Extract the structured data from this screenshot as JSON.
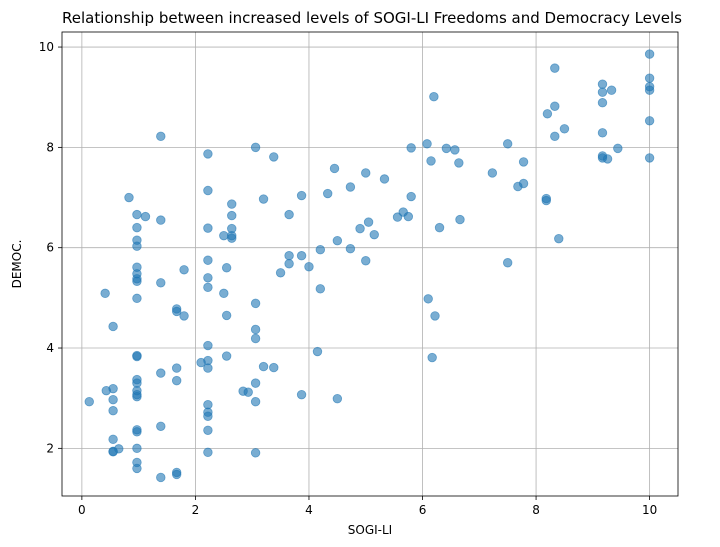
{
  "chart_data": {
    "type": "scatter",
    "title": "Relationship between increased levels of SOGI-LI Freedoms and Democracy Levels",
    "xlabel": "SOGI-LI",
    "ylabel": "DEMOC.",
    "xlim": [
      -0.35,
      10.5
    ],
    "ylim": [
      1.05,
      10.3
    ],
    "xticks": [
      0,
      2,
      4,
      6,
      8,
      10
    ],
    "yticks": [
      2,
      4,
      6,
      8,
      10
    ],
    "grid": true,
    "marker_color": "#1f77b4",
    "points": [
      [
        0.13,
        2.93
      ],
      [
        0.41,
        5.09
      ],
      [
        0.43,
        3.15
      ],
      [
        0.55,
        3.19
      ],
      [
        0.55,
        2.97
      ],
      [
        0.55,
        2.75
      ],
      [
        0.55,
        4.43
      ],
      [
        0.55,
        2.18
      ],
      [
        0.55,
        1.93
      ],
      [
        0.55,
        1.94
      ],
      [
        0.65,
        1.99
      ],
      [
        0.83,
        7.0
      ],
      [
        0.97,
        6.66
      ],
      [
        0.97,
        6.4
      ],
      [
        0.97,
        6.15
      ],
      [
        0.97,
        6.03
      ],
      [
        0.97,
        5.61
      ],
      [
        0.97,
        5.48
      ],
      [
        0.97,
        5.38
      ],
      [
        0.97,
        5.33
      ],
      [
        0.97,
        4.99
      ],
      [
        0.97,
        3.85
      ],
      [
        0.97,
        3.83
      ],
      [
        0.97,
        3.37
      ],
      [
        0.97,
        3.3
      ],
      [
        0.97,
        3.15
      ],
      [
        0.97,
        3.07
      ],
      [
        0.97,
        3.03
      ],
      [
        0.97,
        2.37
      ],
      [
        0.97,
        2.33
      ],
      [
        0.97,
        2.0
      ],
      [
        0.97,
        1.72
      ],
      [
        0.97,
        1.6
      ],
      [
        1.12,
        6.62
      ],
      [
        1.39,
        8.22
      ],
      [
        1.39,
        6.55
      ],
      [
        1.39,
        5.3
      ],
      [
        1.39,
        3.5
      ],
      [
        1.39,
        2.44
      ],
      [
        1.39,
        1.42
      ],
      [
        1.67,
        4.78
      ],
      [
        1.67,
        4.73
      ],
      [
        1.67,
        3.6
      ],
      [
        1.67,
        3.35
      ],
      [
        1.67,
        1.52
      ],
      [
        1.67,
        1.48
      ],
      [
        1.8,
        5.56
      ],
      [
        1.8,
        4.64
      ],
      [
        2.1,
        3.71
      ],
      [
        2.22,
        7.87
      ],
      [
        2.22,
        7.14
      ],
      [
        2.22,
        6.39
      ],
      [
        2.22,
        5.75
      ],
      [
        2.22,
        5.4
      ],
      [
        2.22,
        5.21
      ],
      [
        2.22,
        4.05
      ],
      [
        2.22,
        3.75
      ],
      [
        2.22,
        3.6
      ],
      [
        2.22,
        2.87
      ],
      [
        2.22,
        2.72
      ],
      [
        2.22,
        2.64
      ],
      [
        2.22,
        2.36
      ],
      [
        2.22,
        1.92
      ],
      [
        2.5,
        6.24
      ],
      [
        2.5,
        5.09
      ],
      [
        2.55,
        5.6
      ],
      [
        2.55,
        4.65
      ],
      [
        2.55,
        3.84
      ],
      [
        2.64,
        6.87
      ],
      [
        2.64,
        6.64
      ],
      [
        2.64,
        6.38
      ],
      [
        2.64,
        6.24
      ],
      [
        2.64,
        6.19
      ],
      [
        2.84,
        3.14
      ],
      [
        2.93,
        3.12
      ],
      [
        3.06,
        8.0
      ],
      [
        3.06,
        4.89
      ],
      [
        3.06,
        4.37
      ],
      [
        3.06,
        4.19
      ],
      [
        3.06,
        3.3
      ],
      [
        3.06,
        2.93
      ],
      [
        3.06,
        1.91
      ],
      [
        3.2,
        6.97
      ],
      [
        3.2,
        3.63
      ],
      [
        3.38,
        7.81
      ],
      [
        3.38,
        3.61
      ],
      [
        3.5,
        5.5
      ],
      [
        3.65,
        6.66
      ],
      [
        3.65,
        5.84
      ],
      [
        3.65,
        5.68
      ],
      [
        3.87,
        7.04
      ],
      [
        3.87,
        5.84
      ],
      [
        3.87,
        3.07
      ],
      [
        4.0,
        5.62
      ],
      [
        4.15,
        3.93
      ],
      [
        4.2,
        5.96
      ],
      [
        4.2,
        5.18
      ],
      [
        4.33,
        7.08
      ],
      [
        4.45,
        7.58
      ],
      [
        4.5,
        6.14
      ],
      [
        4.5,
        2.99
      ],
      [
        4.73,
        7.21
      ],
      [
        4.73,
        5.98
      ],
      [
        4.9,
        6.38
      ],
      [
        5.0,
        7.49
      ],
      [
        5.0,
        5.74
      ],
      [
        5.05,
        6.51
      ],
      [
        5.15,
        6.26
      ],
      [
        5.33,
        7.37
      ],
      [
        5.56,
        6.61
      ],
      [
        5.66,
        6.71
      ],
      [
        5.75,
        6.62
      ],
      [
        5.8,
        7.99
      ],
      [
        5.8,
        7.02
      ],
      [
        6.08,
        8.07
      ],
      [
        6.1,
        4.98
      ],
      [
        6.15,
        7.73
      ],
      [
        6.17,
        3.81
      ],
      [
        6.2,
        9.01
      ],
      [
        6.22,
        4.64
      ],
      [
        6.3,
        6.4
      ],
      [
        6.42,
        7.98
      ],
      [
        6.57,
        7.95
      ],
      [
        6.64,
        7.69
      ],
      [
        6.66,
        6.56
      ],
      [
        7.23,
        7.49
      ],
      [
        7.5,
        8.07
      ],
      [
        7.5,
        5.7
      ],
      [
        7.68,
        7.22
      ],
      [
        7.78,
        7.71
      ],
      [
        7.78,
        7.28
      ],
      [
        8.2,
        8.67
      ],
      [
        8.18,
        6.98
      ],
      [
        8.18,
        6.94
      ],
      [
        8.33,
        9.58
      ],
      [
        8.33,
        8.82
      ],
      [
        8.33,
        8.22
      ],
      [
        8.4,
        6.18
      ],
      [
        8.5,
        8.37
      ],
      [
        9.17,
        9.26
      ],
      [
        9.17,
        9.1
      ],
      [
        9.17,
        8.89
      ],
      [
        9.17,
        8.29
      ],
      [
        9.17,
        7.83
      ],
      [
        9.17,
        7.79
      ],
      [
        9.26,
        7.77
      ],
      [
        9.33,
        9.14
      ],
      [
        9.44,
        7.98
      ],
      [
        10.0,
        9.86
      ],
      [
        10.0,
        9.38
      ],
      [
        10.0,
        9.21
      ],
      [
        10.0,
        9.14
      ],
      [
        10.0,
        8.53
      ],
      [
        10.0,
        7.79
      ]
    ]
  }
}
